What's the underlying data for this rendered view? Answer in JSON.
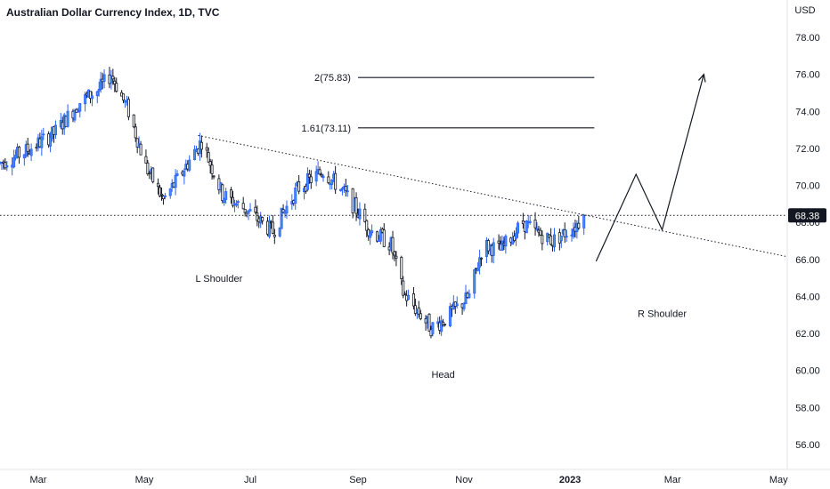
{
  "chart_data": {
    "type": "candlestick",
    "title": "Australian Dollar Currency Index, 1D, TVC",
    "y_unit": "USD",
    "ylim": [
      54.5,
      80.0
    ],
    "y_ticks": [
      "78.00",
      "76.00",
      "74.00",
      "72.00",
      "70.00",
      "68.00",
      "66.00",
      "64.00",
      "62.00",
      "60.00",
      "58.00",
      "56.00"
    ],
    "x_ticks": [
      {
        "label": "Mar",
        "date": "2022-03-01",
        "bold": false
      },
      {
        "label": "May",
        "date": "2022-05-01",
        "bold": false
      },
      {
        "label": "Jul",
        "date": "2022-07-01",
        "bold": false
      },
      {
        "label": "Sep",
        "date": "2022-09-01",
        "bold": false
      },
      {
        "label": "Nov",
        "date": "2022-11-01",
        "bold": false
      },
      {
        "label": "2023",
        "date": "2023-01-01",
        "bold": true
      },
      {
        "label": "Mar",
        "date": "2023-03-01",
        "bold": false
      },
      {
        "label": "May",
        "date": "2023-05-01",
        "bold": false
      }
    ],
    "xlim": [
      "2022-02-07",
      "2023-05-06"
    ],
    "colors": {
      "up": "#2962ff",
      "down": "#131722",
      "up_fill": "#4a90e2",
      "lines": "#131722"
    },
    "last_price": {
      "label": "68.38",
      "value": 68.38
    },
    "waypoints": [
      {
        "date": "2022-02-07",
        "value": 71.2
      },
      {
        "date": "2022-02-21",
        "value": 71.8
      },
      {
        "date": "2022-03-10",
        "value": 72.8
      },
      {
        "date": "2022-03-25",
        "value": 74.5
      },
      {
        "date": "2022-04-05",
        "value": 75.2
      },
      {
        "date": "2022-04-12",
        "value": 76.0
      },
      {
        "date": "2022-04-22",
        "value": 74.0
      },
      {
        "date": "2022-05-02",
        "value": 71.0
      },
      {
        "date": "2022-05-12",
        "value": 69.2
      },
      {
        "date": "2022-05-20",
        "value": 70.3
      },
      {
        "date": "2022-06-03",
        "value": 72.4
      },
      {
        "date": "2022-06-15",
        "value": 69.5
      },
      {
        "date": "2022-06-30",
        "value": 68.6
      },
      {
        "date": "2022-07-14",
        "value": 67.5
      },
      {
        "date": "2022-07-28",
        "value": 69.8
      },
      {
        "date": "2022-08-12",
        "value": 70.8
      },
      {
        "date": "2022-08-25",
        "value": 69.5
      },
      {
        "date": "2022-09-08",
        "value": 67.6
      },
      {
        "date": "2022-09-20",
        "value": 66.8
      },
      {
        "date": "2022-09-27",
        "value": 64.2
      },
      {
        "date": "2022-10-13",
        "value": 62.3
      },
      {
        "date": "2022-10-20",
        "value": 62.7
      },
      {
        "date": "2022-11-04",
        "value": 64.0
      },
      {
        "date": "2022-11-12",
        "value": 66.8
      },
      {
        "date": "2022-11-22",
        "value": 66.5
      },
      {
        "date": "2022-12-05",
        "value": 68.0
      },
      {
        "date": "2022-12-12",
        "value": 67.5
      },
      {
        "date": "2022-12-22",
        "value": 67.0
      },
      {
        "date": "2023-01-04",
        "value": 67.8
      },
      {
        "date": "2023-01-09",
        "value": 68.38
      }
    ],
    "trendline": {
      "start": {
        "date": "2022-06-01",
        "value": 72.7
      },
      "end": {
        "date": "2023-05-06",
        "value": 66.15
      },
      "style": "dotted"
    },
    "price_line": {
      "value": 68.38,
      "style": "dotted"
    },
    "targets": [
      {
        "label": "2(75.83)",
        "value": 75.83,
        "from": "2022-09-01",
        "to": "2023-01-15"
      },
      {
        "label": "1.61(73.11)",
        "value": 73.11,
        "from": "2022-09-01",
        "to": "2023-01-15"
      }
    ],
    "projection": [
      {
        "date": "2023-01-16",
        "value": 65.9
      },
      {
        "date": "2023-02-08",
        "value": 70.6
      },
      {
        "date": "2023-02-23",
        "value": 67.6
      },
      {
        "date": "2023-03-19",
        "value": 76.0
      }
    ],
    "annotations": [
      {
        "label": "L Shoulder",
        "date": "2022-06-13",
        "value": 64.8
      },
      {
        "label": "Head",
        "date": "2022-10-20",
        "value": 59.6
      },
      {
        "label": "R Shoulder",
        "date": "2023-02-23",
        "value": 62.9
      }
    ]
  }
}
